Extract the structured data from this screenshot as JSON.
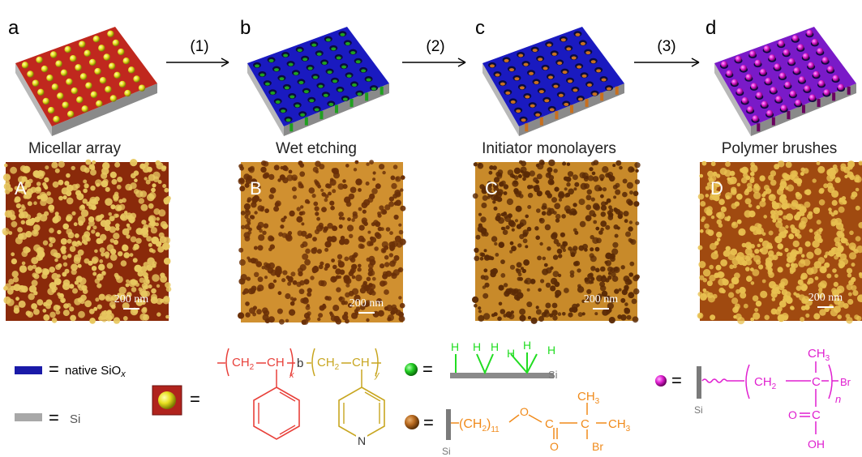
{
  "panels": [
    {
      "letter": "a",
      "afm_letter": "A",
      "caption": "Micellar array",
      "scale": "200 nm"
    },
    {
      "letter": "b",
      "afm_letter": "B",
      "caption": "Wet etching",
      "scale": "200 nm"
    },
    {
      "letter": "c",
      "afm_letter": "C",
      "caption": "Initiator monolayers",
      "scale": "200 nm"
    },
    {
      "letter": "d",
      "afm_letter": "D",
      "caption": "Polymer brushes",
      "scale": "200 nm"
    }
  ],
  "steps": [
    "(1)",
    "(2)",
    "(3)"
  ],
  "legend": {
    "equals": "=",
    "native_label": "native SiO",
    "native_sub": "x",
    "si_label": "Si",
    "native_color": "#1a1aa8",
    "si_color": "#a8a8a8"
  },
  "copolymer": {
    "ch2": "CH",
    "two": "2",
    "ch": "CH",
    "x": "x",
    "y": "y",
    "b": "b",
    "n_atom": "N",
    "color_ps": "#e8403a",
    "color_p4vp": "#c8a620"
  },
  "green_mono": {
    "h": "H",
    "si": "Si",
    "color": "#22dd22"
  },
  "orange_mono": {
    "ch2": "(CH",
    "two": "2",
    "close": ")",
    "sub11": "11",
    "o": "O",
    "c": "C",
    "ch3": "CH",
    "three": "3",
    "br": "Br",
    "si": "Si",
    "color": "#f08a1a"
  },
  "brush": {
    "ch3": "CH",
    "three": "3",
    "ch2": "CH",
    "two": "2",
    "c": "C",
    "br": "Br",
    "n": "n",
    "o": "O",
    "oh": "OH",
    "si": "Si",
    "color": "#e020d0"
  }
}
